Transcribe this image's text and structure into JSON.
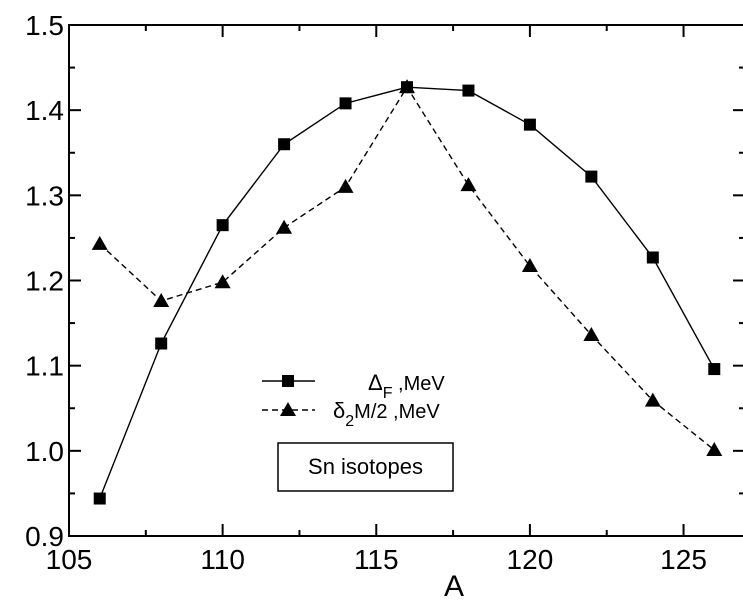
{
  "chart_data": {
    "type": "line",
    "title": "",
    "xlabel": "A",
    "ylabel": "",
    "xlim": [
      105,
      127
    ],
    "ylim": [
      0.9,
      1.5
    ],
    "xticks": [
      105,
      110,
      115,
      120,
      125
    ],
    "yticks": [
      0.9,
      1.0,
      1.1,
      1.2,
      1.3,
      1.4,
      1.5
    ],
    "ytick_labels": [
      "0.9",
      "1.0",
      "1.1",
      "1.2",
      "1.3",
      "1.4",
      "1.5"
    ],
    "grid": false,
    "legend_position": "center-left",
    "series": [
      {
        "name": "ΔF ,MeV",
        "name_main": "Δ",
        "name_sub": "F",
        "name_suffix": " ,MeV",
        "marker": "square",
        "line_style": "solid",
        "color": "#000000",
        "x": [
          106,
          108,
          110,
          112,
          114,
          116,
          118,
          120,
          122,
          124,
          126
        ],
        "values": [
          0.944,
          1.126,
          1.265,
          1.36,
          1.408,
          1.427,
          1.423,
          1.383,
          1.322,
          1.227,
          1.096
        ]
      },
      {
        "name": "δ2M/2 ,MeV",
        "name_main": "δ",
        "name_sub": "2",
        "name_suffix": "M/2 ,MeV",
        "marker": "triangle",
        "line_style": "dashed",
        "color": "#000000",
        "x": [
          106,
          108,
          110,
          112,
          114,
          116,
          118,
          120,
          122,
          124,
          126
        ],
        "values": [
          1.243,
          1.176,
          1.198,
          1.262,
          1.31,
          1.427,
          1.312,
          1.217,
          1.136,
          1.059,
          1.001
        ]
      }
    ],
    "annotation": "Sn isotopes"
  }
}
